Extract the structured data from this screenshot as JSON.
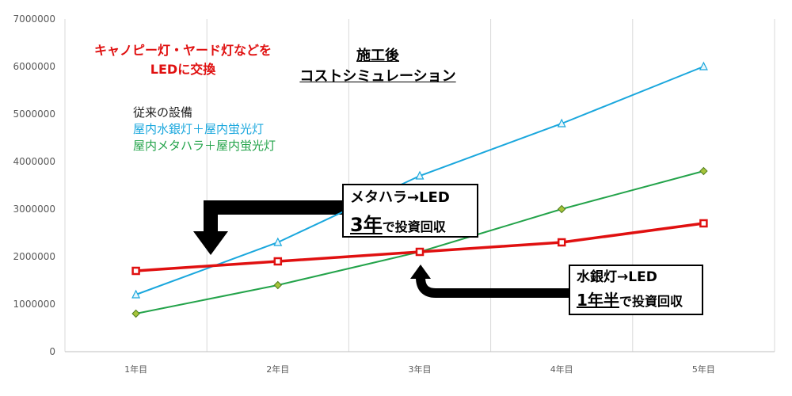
{
  "chart_data": {
    "type": "line",
    "categories": [
      "1年目",
      "2年目",
      "3年目",
      "4年目",
      "5年目"
    ],
    "y_ticks": [
      "0",
      "1000000",
      "2000000",
      "3000000",
      "4000000",
      "5000000",
      "6000000",
      "7000000"
    ],
    "ylim": [
      0,
      7000000
    ],
    "grid": "vertical",
    "series": [
      {
        "name": "LED",
        "color": "#e01010",
        "marker": "square",
        "values": [
          1700000,
          1900000,
          2100000,
          2300000,
          2700000
        ]
      },
      {
        "name": "屋内水銀灯＋屋内蛍光灯",
        "color": "#1aa7dd",
        "marker": "triangle",
        "values": [
          1200000,
          2300000,
          3700000,
          4800000,
          6000000
        ]
      },
      {
        "name": "屋内メタハラ＋屋内蛍光灯",
        "color": "#23a34a",
        "marker": "diamond",
        "values": [
          800000,
          1400000,
          2100000,
          3000000,
          3800000
        ]
      }
    ],
    "title": "施工後\nコストシミュレーション"
  },
  "title": {
    "line1": "施工後",
    "line2": "コストシミュレーション"
  },
  "note": {
    "line1": "キャノピー灯・ヤード灯などを",
    "line2": "LEDに交換"
  },
  "legend": {
    "header": "従来の設備",
    "item1": "屋内水銀灯＋屋内蛍光灯",
    "item2": "屋内メタハラ＋屋内蛍光灯",
    "item1_color": "#1aa7dd",
    "item2_color": "#23a34a"
  },
  "callout_metahara": {
    "line1": "メタハラ→LED",
    "years": "3年",
    "suffix_de": "で",
    "suffix": "投資回収"
  },
  "callout_mercury": {
    "line1": "水銀灯→LED",
    "years": "1年半",
    "suffix_de": "で",
    "suffix": "投資回収"
  }
}
